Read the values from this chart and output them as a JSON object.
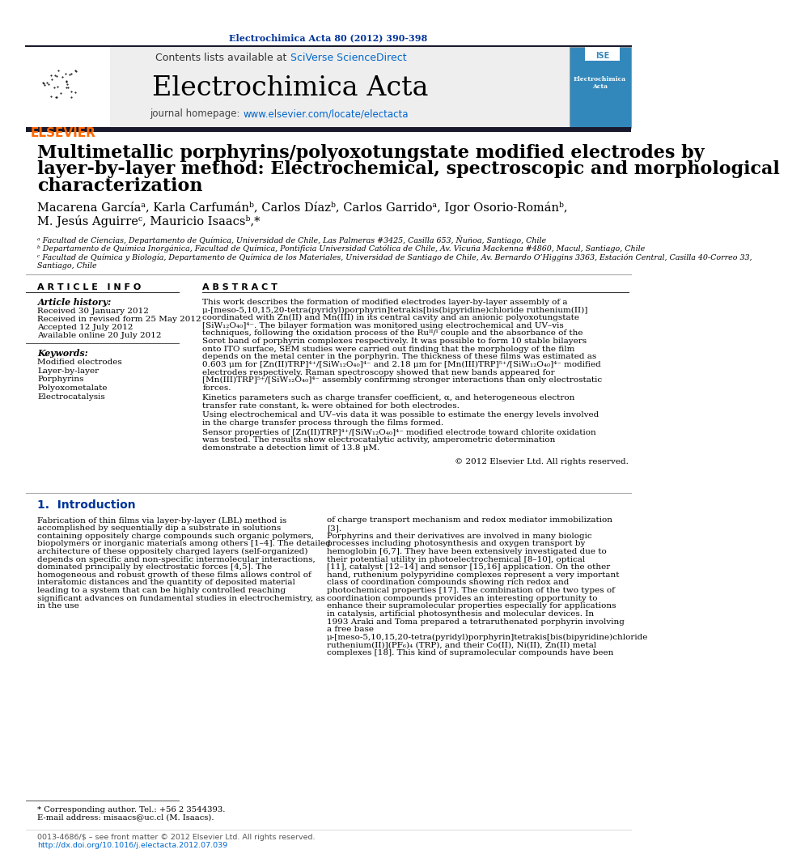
{
  "journal_ref": "Electrochimica Acta 80 (2012) 390-398",
  "journal_ref_color": "#003399",
  "contents_text": "Contents lists available at ",
  "sciverse_text": "SciVerse ScienceDirect",
  "sciverse_color": "#0066cc",
  "journal_name": "Electrochimica Acta",
  "journal_homepage_prefix": "journal homepage: ",
  "journal_url": "www.elsevier.com/locate/electacta",
  "journal_url_color": "#0066cc",
  "title_line1": "Multimetallic porphyrins/polyoxotungstate modified electrodes by",
  "title_line2": "layer-by-layer method: Electrochemical, spectroscopic and morphological",
  "title_line3": "characterization",
  "authors_line1": "Macarena Garcíaᵃ, Karla Carfumánᵇ, Carlos Díazᵇ, Carlos Garridoᵃ, Igor Osorio-Románᵇ,",
  "authors_line2": "M. Jesús Aguirreᶜ, Mauricio Isaacsᵇ,*",
  "affil_a": "ᵃ Facultad de Ciencias, Departamento de Química, Universidad de Chile, Las Palmeras #3425, Casilla 653, Ñuñoa, Santiago, Chile",
  "affil_b": "ᵇ Departamento de Química Inorgánica, Facultad de Química, Pontificia Universidad Católica de Chile, Av. Vicuña Mackenna #4860, Macul, Santiago, Chile",
  "affil_c1": "ᶜ Facultad de Química y Biología, Departamento de Química de los Materiales, Universidad de Santiago de Chile, Av. Bernardo O’Higgins 3363, Estación Central, Casilla 40-Correo 33,",
  "affil_c2": "Santiago, Chile",
  "article_info_header": "A R T I C L E   I N F O",
  "abstract_header": "A B S T R A C T",
  "article_history_label": "Article history:",
  "received": "Received 30 January 2012",
  "revised": "Received in revised form 25 May 2012",
  "accepted": "Accepted 12 July 2012",
  "online": "Available online 20 July 2012",
  "keywords_label": "Keywords:",
  "keywords": [
    "Modified electrodes",
    "Layer-by-layer",
    "Porphyrins",
    "Polyoxometalate",
    "Electrocatalysis"
  ],
  "abstract_text": "This work describes the formation of modified electrodes layer-by-layer assembly of a μ-[meso-5,10,15,20-tetra(pyridyl)porphyrin]tetrakis[bis(bipyridine)chloride ruthenium(II)] coordinated with Zn(II) and Mn(III) in its central cavity and an anionic polyoxotungstate [SiW₁₂O₄₀]⁴⁻. The bilayer formation was monitored using electrochemical and UV–vis techniques, following the oxidation process of the Ruᴵᴵ/ᴵ couple and the absorbance of the Soret band of porphyrin complexes respectively. It was possible to form 10 stable bilayers onto ITO surface, SEM studies were carried out finding that the morphology of the film depends on the metal center in the porphyrin. The thickness of these films was estimated as 0.603 μm for [Zn(II)TRP]⁴⁺/[SiW₁₂O₄₀]⁴⁻ and 2.18 μm for [Mn(III)TRP]⁵⁺/[SiW₁₂O₄₀]⁴⁻ modified electrodes respectively. Raman spectroscopy showed that new bands appeared for [Mn(III)TRP]⁵⁺/[SiW₁₂O₄₀]⁴⁻ assembly confirming stronger interactions than only electrostatic forces.",
  "abstract_para2": "   Kinetics parameters such as charge transfer coefficient, α, and heterogeneous electron transfer rate constant, kₛ were obtained for both electrodes.",
  "abstract_para3": "   Using electrochemical and UV–vis data it was possible to estimate the energy levels involved in the charge transfer process through the films formed.",
  "abstract_para4": "   Sensor properties of [Zn(II)TRP]⁴⁺/[SiW₁₂O₄₀]⁴⁻ modified electrode toward chlorite oxidation was tested. The results show electrocatalytic activity, amperometric determination demonstrate a detection limit of 13.8 μM.",
  "copyright": "© 2012 Elsevier Ltd. All rights reserved.",
  "section1_header": "1.  Introduction",
  "intro_col1": "   Fabrication of thin films via layer-by-layer (LBL) method is accomplished by sequentially dip a substrate in solutions containing oppositely charge compounds such organic polymers, biopolymers or inorganic materials among others [1–4]. The detailed architecture of these oppositely charged layers (self-organized) depends on specific and non-specific intermolecular interactions, dominated principally by electrostatic forces [4,5]. The homogeneous and robust growth of these films allows control of interatomic distances and the quantity of deposited material leading to a system that can be highly controlled reaching significant advances on fundamental studies in electrochemistry, as in the use",
  "intro_col2": "of charge transport mechanism and redox mediator immobilization [3].\n   Porphyrins and their derivatives are involved in many biologic processes including photosynthesis and oxygen transport by hemoglobin [6,7]. They have been extensively investigated due to their potential utility in photoelectrochemical [8–10], optical [11], catalyst [12–14] and sensor [15,16] application. On the other hand, ruthenium polypyridine complexes represent a very important class of coordination compounds showing rich redox and photochemical properties [17]. The combination of the two types of coordination compounds provides an interesting opportunity to enhance their supramolecular properties especially for applications in catalysis, artificial photosynthesis and molecular devices. In 1993 Araki and Toma prepared a tetraruthenated porphyrin involving a free base μ-[meso-5,10,15,20-tetra(pyridyl)porphyrin]tetrakis[bis(bipyridine)chloride ruthenium(II)](PF₆)₄ (TRP), and their Co(II), Ni(II), Zn(II) metal complexes [18]. This kind of supramolecular compounds have been",
  "footnote1": "* Corresponding author. Tel.: +56 2 3544393.",
  "footnote2": "E-mail address: misaacs@uc.cl (M. Isaacs).",
  "footer1": "0013-4686/$ – see front matter © 2012 Elsevier Ltd. All rights reserved.",
  "footer2": "http://dx.doi.org/10.1016/j.electacta.2012.07.039",
  "bg_color": "#ffffff",
  "elsevier_orange": "#ff6600",
  "blue_color": "#003399",
  "link_color": "#0066cc"
}
